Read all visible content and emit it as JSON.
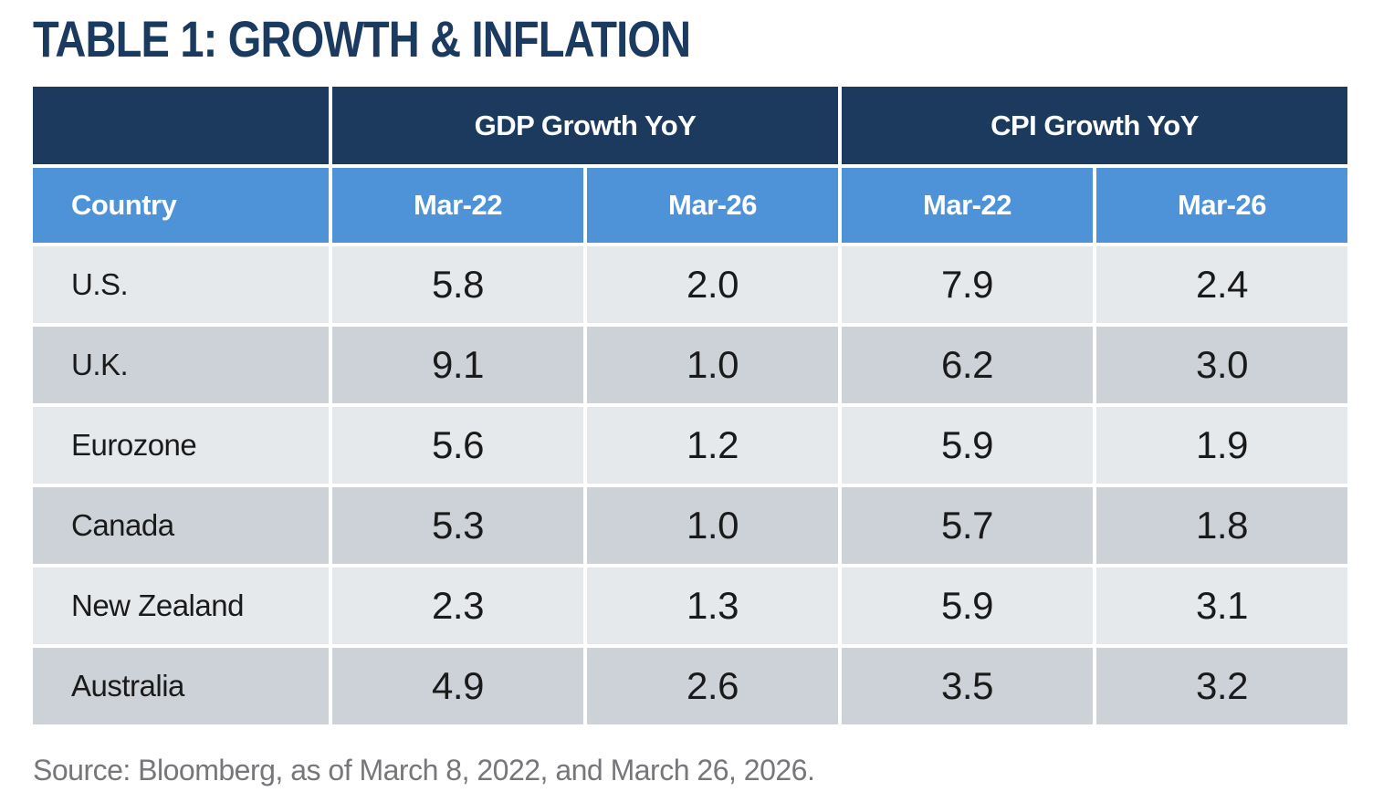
{
  "title": "TABLE 1: GROWTH & INFLATION",
  "table": {
    "group_headers": [
      {
        "label": "GDP Growth YoY"
      },
      {
        "label": "CPI Growth YoY"
      }
    ],
    "column_header": {
      "country": "Country",
      "cols": [
        "Mar-22",
        "Mar-26",
        "Mar-22",
        "Mar-26"
      ]
    },
    "rows": [
      {
        "country": "U.S.",
        "values": [
          "5.8",
          "2.0",
          "7.9",
          "2.4"
        ]
      },
      {
        "country": "U.K.",
        "values": [
          "9.1",
          "1.0",
          "6.2",
          "3.0"
        ]
      },
      {
        "country": "Eurozone",
        "values": [
          "5.6",
          "1.2",
          "5.9",
          "1.9"
        ]
      },
      {
        "country": "Canada",
        "values": [
          "5.3",
          "1.0",
          "5.7",
          "1.8"
        ]
      },
      {
        "country": "New Zealand",
        "values": [
          "2.3",
          "1.3",
          "5.9",
          "3.1"
        ]
      },
      {
        "country": "Australia",
        "values": [
          "4.9",
          "2.6",
          "3.5",
          "3.2"
        ]
      }
    ]
  },
  "source": "Source: Bloomberg, as of March 8, 2022, and March 26, 2026.",
  "colors": {
    "header_navy": "#1C3A5E",
    "header_blue": "#4E92D8",
    "row_light": "#E6E9EC",
    "row_dark": "#CDD2D8",
    "title_text": "#1B3A5F",
    "body_text": "#1A1A1A",
    "source_text": "#76777A"
  },
  "chart_data": {
    "type": "table",
    "title": "TABLE 1: GROWTH & INFLATION",
    "columns": [
      "Country",
      "GDP Growth YoY Mar-22",
      "GDP Growth YoY Mar-26",
      "CPI Growth YoY Mar-22",
      "CPI Growth YoY Mar-26"
    ],
    "rows": [
      [
        "U.S.",
        5.8,
        2.0,
        7.9,
        2.4
      ],
      [
        "U.K.",
        9.1,
        1.0,
        6.2,
        3.0
      ],
      [
        "Eurozone",
        5.6,
        1.2,
        5.9,
        1.9
      ],
      [
        "Canada",
        5.3,
        1.0,
        5.7,
        1.8
      ],
      [
        "New Zealand",
        2.3,
        1.3,
        5.9,
        3.1
      ],
      [
        "Australia",
        4.9,
        2.6,
        3.5,
        3.2
      ]
    ],
    "source": "Source: Bloomberg, as of March 8, 2022, and March 26, 2026."
  }
}
